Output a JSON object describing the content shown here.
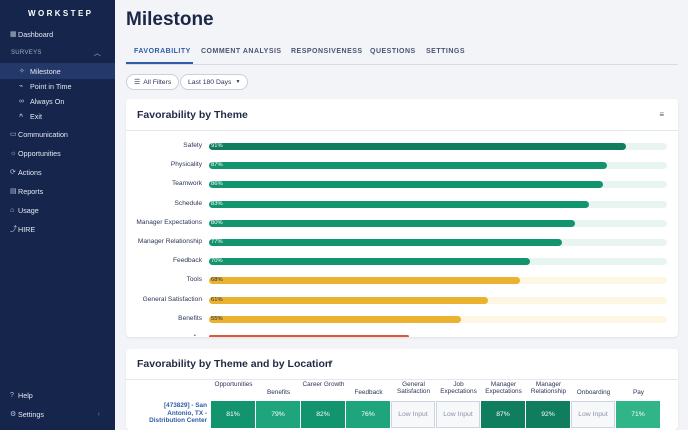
{
  "brand": {
    "logo_text": "WORKSTEP"
  },
  "sidebar": {
    "items": [
      {
        "label": "Dashboard",
        "icon": "grid-icon"
      },
      {
        "label": "SURVEYS",
        "icon": "chevron-up-icon"
      },
      {
        "label": "Milestone",
        "icon": "milestone-icon"
      },
      {
        "label": "Point in Time",
        "icon": "point-in-time-icon"
      },
      {
        "label": "Always On",
        "icon": "infinity-icon"
      },
      {
        "label": "Exit",
        "icon": "exit-user-icon"
      },
      {
        "label": "Communication",
        "icon": "chat-icon"
      },
      {
        "label": "Opportunities",
        "icon": "lightbulb-icon"
      },
      {
        "label": "Actions",
        "icon": "actions-icon"
      },
      {
        "label": "Reports",
        "icon": "report-icon"
      },
      {
        "label": "Usage",
        "icon": "usage-icon"
      },
      {
        "label": "HIRE",
        "icon": "hire-icon"
      }
    ],
    "bottom": [
      {
        "label": "Help",
        "icon": "help-icon"
      },
      {
        "label": "Settings",
        "icon": "gear-icon"
      }
    ]
  },
  "page": {
    "title": "Milestone"
  },
  "tabs": [
    "FAVORABILITY",
    "COMMENT ANALYSIS",
    "RESPONSIVENESS",
    "QUESTIONS",
    "SETTINGS"
  ],
  "filters": {
    "all_filters": "All Filters",
    "date_range": "Last 180 Days"
  },
  "theme_card": {
    "title": "Favorability by Theme",
    "colors": {
      "green": "#12946f",
      "green_track": "#e8f4f0",
      "dark_green": "#0f7d5e",
      "yellow": "#eab22f",
      "yellow_track": "#fdf6e3",
      "red": "#e0563b"
    }
  },
  "chart_data": {
    "type": "bar",
    "orientation": "horizontal",
    "categories": [
      "Safety",
      "Physicality",
      "Teamwork",
      "Schedule",
      "Manager Expectations",
      "Manager Relationship",
      "Feedback",
      "Tools",
      "General Satisfaction",
      "Benefits"
    ],
    "values": [
      91,
      87,
      86,
      83,
      80,
      77,
      70,
      68,
      61,
      55
    ],
    "value_labels": [
      "91%",
      "87%",
      "86%",
      "83%",
      "80%",
      "77%",
      "70%",
      "68%",
      "61%",
      "55%"
    ],
    "xlim": [
      0,
      100
    ]
  },
  "location_card": {
    "title": "Favorability by Theme and by Location",
    "columns": [
      "Opportunities",
      "Benefits",
      "Career Growth",
      "Feedback",
      "General Satisfaction",
      "Job Expectations",
      "Manager Expectations",
      "Manager Relationship",
      "Onboarding",
      "Pay"
    ],
    "rows": [
      {
        "label": "[473829] - San Antonio, TX - Distribution Center",
        "cells": [
          "81%",
          "79%",
          "82%",
          "76%",
          "Low Input",
          "Low Input",
          "87%",
          "92%",
          "Low Input",
          "71%"
        ]
      }
    ]
  }
}
